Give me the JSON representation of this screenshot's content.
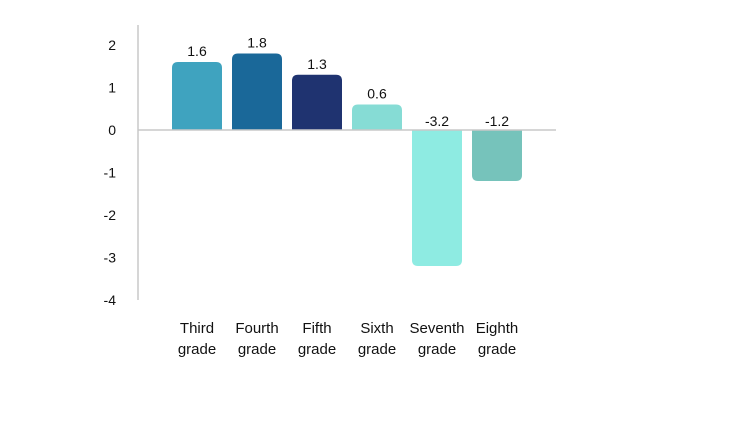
{
  "chart_data": {
    "type": "bar",
    "title": "",
    "xlabel": "",
    "ylabel": "",
    "categories": [
      [
        "Third",
        "grade"
      ],
      [
        "Fourth",
        "grade"
      ],
      [
        "Fifth",
        "grade"
      ],
      [
        "Sixth",
        "grade"
      ],
      [
        "Seventh",
        "grade"
      ],
      [
        "Eighth",
        "grade"
      ]
    ],
    "values": [
      1.6,
      1.8,
      1.3,
      0.6,
      -3.2,
      -1.2
    ],
    "data_labels": [
      "1.6",
      "1.8",
      "1.3",
      "0.6",
      "-3.2",
      "-1.2"
    ],
    "colors": [
      "#3fa3bf",
      "#1a6899",
      "#1f3370",
      "#86dcd5",
      "#8eebe2",
      "#76c3bb"
    ],
    "ylim": [
      -4,
      2
    ],
    "yticks": [
      2,
      1,
      0,
      -1,
      -2,
      -3,
      -4
    ],
    "grid": false,
    "legend": "none"
  }
}
